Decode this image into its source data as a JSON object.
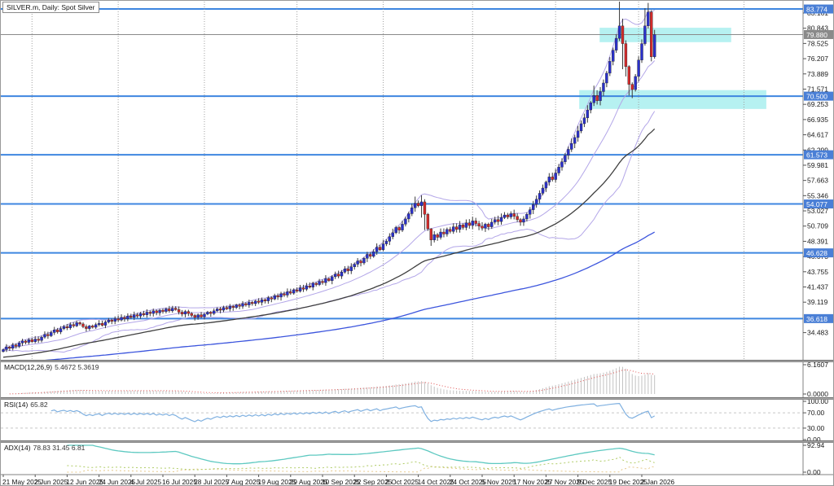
{
  "window": {
    "title": "SILVER.m, Daily:  Spot Silver"
  },
  "colors": {
    "bull": "#2a30cc",
    "bear": "#d42a2a",
    "wick": "#3a3a3a",
    "bollinger": "#b3a6e8",
    "ma_black": "#3f3f3f",
    "ma_blue": "#3c55dd",
    "sr_line_blue": "#3e86e0",
    "price_line_gray": "#8a8a8a",
    "zone_fill": "rgba(110,228,228,0.50)",
    "badge_blue": "#4a7fd6",
    "badge_gray": "#8a8a8a",
    "macd_hist": "#c2c2c2",
    "macd_signal": "#e05050",
    "rsi_line": "#7fb0e0",
    "level_dash": "#c8c8c8",
    "adx_main": "#5ec9c1",
    "adx_plus_di": "#b0cc66",
    "adx_minus_di": "#e6c98c",
    "separator_dots": "#a0a0a0",
    "axis_text": "#1a1a1a"
  },
  "chart_data": {
    "type": "candlestick",
    "symbol": "SILVER.m",
    "timeframe": "Daily",
    "description": "Spot Silver",
    "time_labels": [
      "21 May 2025",
      "2 Jun 2025",
      "12 Jun 2025",
      "24 Jun 2025",
      "4 Jul 2025",
      "16 Jul 2025",
      "28 Jul 2025",
      "7 Aug 2025",
      "19 Aug 2025",
      "29 Aug 2025",
      "10 Sep 2025",
      "22 Sep 2025",
      "2 Oct 2025",
      "14 Oct 2025",
      "24 Oct 2025",
      "5 Nov 2025",
      "17 Nov 2025",
      "27 Nov 2025",
      "9 Dec 2025",
      "19 Dec 2025",
      "2 Jan 2026"
    ],
    "price_axis_ticks": [
      "83.161",
      "80.843",
      "78.525",
      "76.207",
      "73.889",
      "71.571",
      "69.253",
      "66.935",
      "64.617",
      "62.299",
      "59.981",
      "57.663",
      "55.346",
      "53.027",
      "50.709",
      "48.391",
      "46.073",
      "43.755",
      "41.437",
      "39.119",
      "34.483"
    ],
    "price_badges": [
      {
        "price": 83.774,
        "text": "83.774",
        "style": "blue"
      },
      {
        "price": 79.88,
        "text": "79.880",
        "style": "gray"
      },
      {
        "price": 70.5,
        "text": "70.500",
        "style": "blue"
      },
      {
        "price": 61.573,
        "text": "61.573",
        "style": "blue"
      },
      {
        "price": 54.077,
        "text": "54.077",
        "style": "blue"
      },
      {
        "price": 46.628,
        "text": "46.628",
        "style": "blue"
      },
      {
        "price": 36.618,
        "text": "36.618",
        "style": "blue"
      }
    ],
    "horizontal_lines": [
      {
        "price": 83.774,
        "style": "blue"
      },
      {
        "price": 79.88,
        "style": "gray"
      },
      {
        "price": 70.5,
        "style": "blue"
      },
      {
        "price": 61.573,
        "style": "blue"
      },
      {
        "price": 54.077,
        "style": "blue"
      },
      {
        "price": 46.628,
        "style": "blue"
      },
      {
        "price": 36.618,
        "style": "blue"
      }
    ],
    "zones": [
      {
        "bar_start": 186.8,
        "bar_end": 228.0,
        "price_low": 78.72,
        "price_high": 80.92
      },
      {
        "bar_start": 180.4,
        "bar_end": 239.0,
        "price_low": 68.55,
        "price_high": 71.42
      }
    ],
    "month_separator_bars": [
      9,
      36,
      63,
      92,
      119,
      147,
      173,
      199,
      232
    ],
    "closes": [
      31.9,
      32.3,
      32.1,
      32.6,
      32.4,
      32.9,
      33.2,
      33.0,
      33.4,
      33.1,
      33.5,
      33.3,
      33.8,
      34.2,
      34.0,
      34.5,
      34.9,
      34.6,
      35.1,
      35.4,
      35.2,
      35.7,
      35.5,
      36.0,
      35.8,
      35.4,
      35.1,
      35.5,
      35.3,
      35.7,
      35.9,
      35.6,
      36.1,
      36.4,
      36.2,
      36.6,
      36.4,
      36.8,
      36.6,
      37.0,
      36.8,
      37.2,
      37.0,
      37.4,
      37.2,
      37.6,
      37.4,
      37.8,
      37.5,
      37.9,
      37.7,
      38.1,
      37.8,
      38.2,
      38.0,
      37.6,
      37.3,
      37.7,
      37.4,
      37.1,
      36.8,
      37.2,
      36.9,
      37.3,
      37.6,
      37.4,
      37.8,
      38.1,
      37.9,
      38.3,
      38.1,
      38.5,
      38.3,
      38.7,
      38.5,
      38.9,
      38.7,
      39.1,
      38.9,
      39.3,
      39.1,
      39.5,
      39.3,
      39.8,
      39.6,
      40.1,
      39.9,
      40.4,
      40.2,
      40.7,
      40.5,
      41.0,
      40.8,
      41.3,
      41.1,
      41.6,
      41.4,
      42.0,
      41.8,
      42.3,
      42.1,
      42.7,
      42.4,
      43.0,
      43.4,
      43.1,
      43.7,
      44.2,
      43.9,
      44.5,
      44.9,
      45.4,
      45.1,
      45.8,
      46.4,
      46.1,
      46.8,
      47.5,
      47.1,
      48.0,
      48.4,
      49.1,
      49.7,
      50.5,
      50.1,
      51.0,
      51.8,
      52.6,
      53.5,
      54.2,
      53.8,
      54.4,
      52.5,
      50.3,
      48.6,
      49.4,
      49.0,
      49.8,
      49.5,
      50.2,
      49.9,
      50.6,
      50.2,
      50.9,
      50.5,
      51.2,
      50.8,
      51.5,
      51.1,
      50.7,
      50.4,
      51.0,
      50.6,
      51.3,
      51.7,
      51.4,
      52.0,
      52.4,
      52.1,
      52.6,
      52.2,
      51.7,
      51.3,
      51.8,
      52.5,
      53.2,
      54.0,
      54.8,
      55.7,
      56.5,
      57.4,
      58.2,
      57.8,
      58.8,
      59.7,
      60.5,
      61.5,
      62.4,
      63.3,
      64.2,
      65.2,
      66.3,
      67.2,
      68.4,
      69.5,
      70.6,
      69.8,
      71.2,
      72.5,
      74.0,
      75.8,
      77.5,
      79.3,
      81.2,
      78.5,
      75.0,
      72.3,
      71.5,
      73.5,
      76.0,
      78.5,
      81.2,
      83.3,
      76.5,
      79.88
    ],
    "wick_overrides": {
      "129": [
        55.2,
        52.9
      ],
      "131": [
        55.4,
        52.0
      ],
      "132": [
        54.8,
        50.1
      ],
      "134": [
        50.4,
        47.7
      ],
      "185": [
        72.1,
        69.0
      ],
      "193": [
        84.9,
        78.9
      ],
      "194": [
        82.3,
        74.6
      ],
      "195": [
        79.0,
        73.5
      ],
      "196": [
        75.2,
        70.6
      ],
      "197": [
        72.6,
        70.2
      ],
      "201": [
        83.9,
        78.2
      ],
      "202": [
        84.7,
        80.8
      ],
      "203": [
        83.6,
        75.8
      ],
      "204": [
        80.6,
        76.2
      ]
    },
    "indicators": {
      "macd": {
        "label": "MACD(12,26,9)",
        "values_text": "5.4672 5.3619",
        "axis_ticks": [
          "6.1607",
          "0.0000"
        ],
        "scale_max": 6.1607,
        "scale_min": 0.0
      },
      "rsi": {
        "label": "RSI(14)",
        "values_text": "65.82",
        "axis_ticks": [
          "100.00",
          "70.00",
          "30.00",
          "0.00"
        ],
        "levels": [
          70,
          30
        ]
      },
      "adx": {
        "label": "ADX(14)",
        "values_text": "78.83 31.45 6.81",
        "axis_ticks": [
          "92.94",
          "0.00"
        ],
        "scale_max": 92.94
      }
    }
  }
}
